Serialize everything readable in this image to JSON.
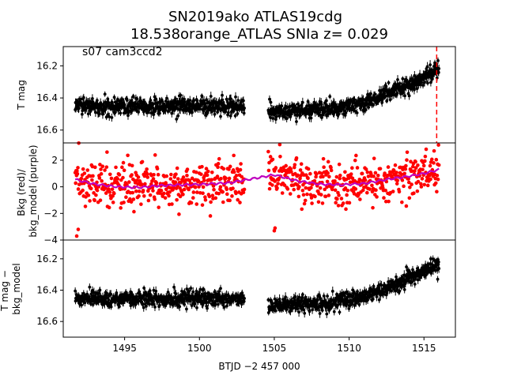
{
  "title_line1": "SN2019ako  ATLAS19cdg",
  "title_line2": "18.538orange_ATLAS SNIa z= 0.029",
  "annotation": "s07 cam3ccd2",
  "chart_data": [
    {
      "type": "scatter",
      "panel": "top",
      "ylabel": "T mag",
      "ylim": [
        16.68,
        16.08
      ],
      "inverted_y": true,
      "yticks": [
        "16.2",
        "16.4",
        "16.6"
      ],
      "xlim": [
        1490.9,
        1517.1
      ],
      "color": "#000000",
      "error_bars": true,
      "vline": {
        "x": 1515.85,
        "color": "#ff0000",
        "style": "dashed"
      },
      "segments": [
        {
          "x_start": 1491.7,
          "x_end": 1503.0,
          "level": [
            [
              1491.7,
              16.45
            ],
            [
              1503.0,
              16.45
            ]
          ],
          "scatter": 0.045
        },
        {
          "x_start": 1504.6,
          "x_end": 1516.0,
          "level": [
            [
              1504.6,
              16.49
            ],
            [
              1509.0,
              16.47
            ],
            [
              1511.0,
              16.43
            ],
            [
              1513.0,
              16.36
            ],
            [
              1514.5,
              16.3
            ],
            [
              1516.0,
              16.23
            ]
          ],
          "scatter": 0.045
        }
      ]
    },
    {
      "type": "scatter",
      "panel": "middle",
      "ylabel": "Bkg (red)/\nbkg_model (purple)",
      "ylim": [
        -4,
        3.3
      ],
      "yticks": [
        "2",
        "0",
        "−2",
        "−4"
      ],
      "xlim": [
        1490.9,
        1517.1
      ],
      "series": [
        {
          "name": "Bkg",
          "color": "#ff0000",
          "marker": "dot"
        },
        {
          "name": "bkg_model",
          "color": "#bf00bf",
          "marker": "line"
        }
      ],
      "bkg_model": [
        [
          1491.7,
          0.55
        ],
        [
          1493.0,
          0.2
        ],
        [
          1494.5,
          0.0
        ],
        [
          1496.0,
          -0.05
        ],
        [
          1497.5,
          0.1
        ],
        [
          1499.0,
          0.15
        ],
        [
          1500.5,
          0.2
        ],
        [
          1502.0,
          0.3
        ],
        [
          1503.0,
          0.5
        ],
        [
          1505.0,
          0.9
        ],
        [
          1506.5,
          0.45
        ],
        [
          1508.0,
          0.2
        ],
        [
          1509.5,
          0.15
        ],
        [
          1511.0,
          0.25
        ],
        [
          1512.5,
          0.55
        ],
        [
          1514.0,
          0.8
        ],
        [
          1515.0,
          1.0
        ],
        [
          1516.0,
          1.3
        ]
      ],
      "outliers": [
        [
          1491.8,
          -3.7
        ],
        [
          1491.9,
          -3.2
        ],
        [
          1505.0,
          -3.3
        ],
        [
          1505.05,
          -3.1
        ]
      ],
      "scatter": 0.8
    },
    {
      "type": "scatter",
      "panel": "bottom",
      "ylabel": "T mag −\nbkg_model",
      "ylim": [
        16.7,
        16.08
      ],
      "inverted_y": true,
      "yticks": [
        "16.2",
        "16.4",
        "16.6"
      ],
      "xlim": [
        1490.9,
        1517.1
      ],
      "xticks": [
        1495,
        1500,
        1505,
        1510,
        1515
      ],
      "xticklabels": [
        "1495",
        "1500",
        "1505",
        "1510",
        "1515"
      ],
      "xlabel": "BTJD −2 457 000",
      "color": "#000000",
      "error_bars": true,
      "segments": [
        {
          "x_start": 1491.7,
          "x_end": 1503.0,
          "level": [
            [
              1491.7,
              16.45
            ],
            [
              1503.0,
              16.46
            ]
          ],
          "scatter": 0.045
        },
        {
          "x_start": 1504.6,
          "x_end": 1516.0,
          "level": [
            [
              1504.6,
              16.5
            ],
            [
              1509.0,
              16.48
            ],
            [
              1511.0,
              16.44
            ],
            [
              1513.0,
              16.37
            ],
            [
              1514.5,
              16.3
            ],
            [
              1516.0,
              16.24
            ]
          ],
          "scatter": 0.045
        }
      ]
    }
  ]
}
